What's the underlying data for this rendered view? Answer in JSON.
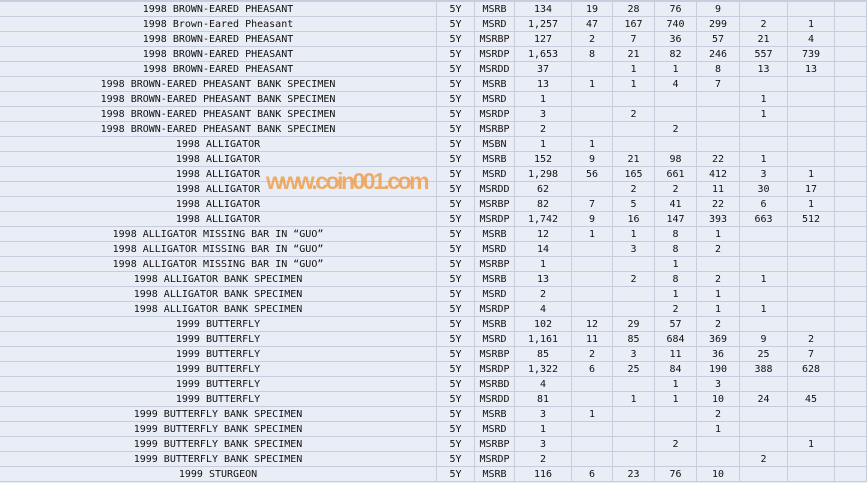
{
  "watermark": "www.coin001.com",
  "colors": {
    "background": "#e9edf6",
    "gridline": "#c6cedd",
    "watermark": "#f0a050"
  },
  "rows": [
    [
      "1998 BROWN-EARED PHEASANT",
      "5Y",
      "MSRB",
      "134",
      "19",
      "28",
      "76",
      "9",
      "",
      ""
    ],
    [
      "1998 Brown-Eared Pheasant",
      "5Y",
      "MSRD",
      "1,257",
      "47",
      "167",
      "740",
      "299",
      "2",
      "1"
    ],
    [
      "1998 BROWN-EARED PHEASANT",
      "5Y",
      "MSRBP",
      "127",
      "2",
      "7",
      "36",
      "57",
      "21",
      "4"
    ],
    [
      "1998 BROWN-EARED PHEASANT",
      "5Y",
      "MSRDP",
      "1,653",
      "8",
      "21",
      "82",
      "246",
      "557",
      "739"
    ],
    [
      "1998 BROWN-EARED PHEASANT",
      "5Y",
      "MSRDD",
      "37",
      "",
      "1",
      "1",
      "8",
      "13",
      "13"
    ],
    [
      "1998 BROWN-EARED PHEASANT BANK SPECIMEN",
      "5Y",
      "MSRB",
      "13",
      "1",
      "1",
      "4",
      "7",
      "",
      ""
    ],
    [
      "1998 BROWN-EARED PHEASANT BANK SPECIMEN",
      "5Y",
      "MSRD",
      "1",
      "",
      "",
      "",
      "",
      "1",
      ""
    ],
    [
      "1998 BROWN-EARED PHEASANT BANK SPECIMEN",
      "5Y",
      "MSRDP",
      "3",
      "",
      "2",
      "",
      "",
      "1",
      ""
    ],
    [
      "1998 BROWN-EARED PHEASANT BANK SPECIMEN",
      "5Y",
      "MSRBP",
      "2",
      "",
      "",
      "2",
      "",
      "",
      ""
    ],
    [
      "1998 ALLIGATOR",
      "5Y",
      "MSBN",
      "1",
      "1",
      "",
      "",
      "",
      "",
      ""
    ],
    [
      "1998 ALLIGATOR",
      "5Y",
      "MSRB",
      "152",
      "9",
      "21",
      "98",
      "22",
      "1",
      ""
    ],
    [
      "1998 ALLIGATOR",
      "5Y",
      "MSRD",
      "1,298",
      "56",
      "165",
      "661",
      "412",
      "3",
      "1"
    ],
    [
      "1998 ALLIGATOR",
      "5Y",
      "MSRDD",
      "62",
      "",
      "2",
      "2",
      "11",
      "30",
      "17"
    ],
    [
      "1998 ALLIGATOR",
      "5Y",
      "MSRBP",
      "82",
      "7",
      "5",
      "41",
      "22",
      "6",
      "1"
    ],
    [
      "1998 ALLIGATOR",
      "5Y",
      "MSRDP",
      "1,742",
      "9",
      "16",
      "147",
      "393",
      "663",
      "512"
    ],
    [
      "1998 ALLIGATOR MISSING BAR IN “GUO”",
      "5Y",
      "MSRB",
      "12",
      "1",
      "1",
      "8",
      "1",
      "",
      ""
    ],
    [
      "1998 ALLIGATOR MISSING BAR IN “GUO”",
      "5Y",
      "MSRD",
      "14",
      "",
      "3",
      "8",
      "2",
      "",
      ""
    ],
    [
      "1998 ALLIGATOR MISSING BAR IN “GUO”",
      "5Y",
      "MSRBP",
      "1",
      "",
      "",
      "1",
      "",
      "",
      ""
    ],
    [
      "1998 ALLIGATOR BANK SPECIMEN",
      "5Y",
      "MSRB",
      "13",
      "",
      "2",
      "8",
      "2",
      "1",
      ""
    ],
    [
      "1998 ALLIGATOR BANK SPECIMEN",
      "5Y",
      "MSRD",
      "2",
      "",
      "",
      "1",
      "1",
      "",
      ""
    ],
    [
      "1998 ALLIGATOR BANK SPECIMEN",
      "5Y",
      "MSRDP",
      "4",
      "",
      "",
      "2",
      "1",
      "1",
      ""
    ],
    [
      "1999 BUTTERFLY",
      "5Y",
      "MSRB",
      "102",
      "12",
      "29",
      "57",
      "2",
      "",
      ""
    ],
    [
      "1999 BUTTERFLY",
      "5Y",
      "MSRD",
      "1,161",
      "11",
      "85",
      "684",
      "369",
      "9",
      "2"
    ],
    [
      "1999 BUTTERFLY",
      "5Y",
      "MSRBP",
      "85",
      "2",
      "3",
      "11",
      "36",
      "25",
      "7"
    ],
    [
      "1999 BUTTERFLY",
      "5Y",
      "MSRDP",
      "1,322",
      "6",
      "25",
      "84",
      "190",
      "388",
      "628"
    ],
    [
      "1999 BUTTERFLY",
      "5Y",
      "MSRBD",
      "4",
      "",
      "",
      "1",
      "3",
      "",
      ""
    ],
    [
      "1999 BUTTERFLY",
      "5Y",
      "MSRDD",
      "81",
      "",
      "1",
      "1",
      "10",
      "24",
      "45"
    ],
    [
      "1999 BUTTERFLY BANK SPECIMEN",
      "5Y",
      "MSRB",
      "3",
      "1",
      "",
      "",
      "2",
      "",
      ""
    ],
    [
      "1999 BUTTERFLY BANK SPECIMEN",
      "5Y",
      "MSRD",
      "1",
      "",
      "",
      "",
      "1",
      "",
      ""
    ],
    [
      "1999 BUTTERFLY BANK SPECIMEN",
      "5Y",
      "MSRBP",
      "3",
      "",
      "",
      "2",
      "",
      "",
      "1"
    ],
    [
      "1999 BUTTERFLY BANK SPECIMEN",
      "5Y",
      "MSRDP",
      "2",
      "",
      "",
      "",
      "",
      "2",
      ""
    ],
    [
      "1999 STURGEON",
      "5Y",
      "MSRB",
      "116",
      "6",
      "23",
      "76",
      "10",
      "",
      ""
    ]
  ]
}
